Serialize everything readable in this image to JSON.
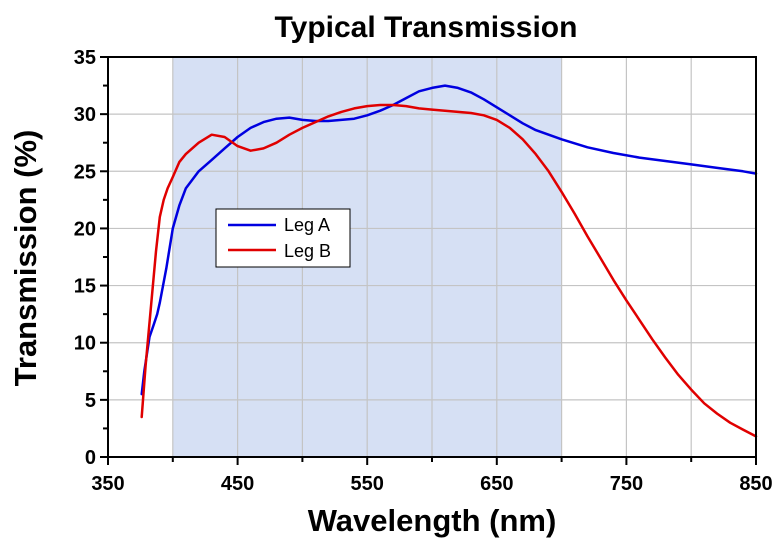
{
  "chart_data": {
    "type": "line",
    "title": "Typical Transmission",
    "xlabel": "Wavelength (nm)",
    "ylabel": "Transmission (%)",
    "xlim": [
      350,
      850
    ],
    "ylim": [
      0,
      35
    ],
    "xticks": [
      350,
      450,
      550,
      650,
      750,
      850
    ],
    "yticks": [
      0,
      5,
      10,
      15,
      20,
      25,
      30,
      35
    ],
    "xtick_labels": [
      "350",
      "450",
      "550",
      "650",
      "750",
      "850"
    ],
    "ytick_labels": [
      "0",
      "5",
      "10",
      "15",
      "20",
      "25",
      "30",
      "35"
    ],
    "grid": true,
    "shaded_region": {
      "x_start": 400,
      "x_end": 700,
      "color": "#d6e0f4"
    },
    "legend_position": "center-left",
    "series": [
      {
        "name": "Leg A",
        "color": "#0000e0",
        "x": [
          376,
          378,
          380,
          382,
          385,
          388,
          390,
          395,
          400,
          405,
          410,
          420,
          430,
          440,
          450,
          460,
          470,
          480,
          490,
          500,
          510,
          520,
          530,
          540,
          550,
          560,
          570,
          580,
          590,
          600,
          610,
          620,
          630,
          640,
          650,
          660,
          670,
          680,
          700,
          720,
          740,
          760,
          780,
          800,
          820,
          840,
          850
        ],
        "y": [
          5.5,
          7.5,
          9.0,
          10.5,
          11.5,
          12.5,
          13.5,
          16.5,
          20.0,
          22.0,
          23.5,
          25.0,
          26.0,
          27.0,
          28.0,
          28.8,
          29.3,
          29.6,
          29.7,
          29.5,
          29.4,
          29.4,
          29.5,
          29.6,
          29.9,
          30.3,
          30.8,
          31.4,
          32.0,
          32.3,
          32.5,
          32.3,
          31.9,
          31.3,
          30.6,
          29.9,
          29.2,
          28.6,
          27.8,
          27.1,
          26.6,
          26.2,
          25.9,
          25.6,
          25.3,
          25.0,
          24.8
        ]
      },
      {
        "name": "Leg B",
        "color": "#e00000",
        "x": [
          376,
          377,
          379,
          381,
          383,
          385,
          387,
          390,
          393,
          396,
          400,
          405,
          410,
          420,
          430,
          440,
          450,
          460,
          470,
          480,
          490,
          500,
          510,
          520,
          530,
          540,
          550,
          560,
          570,
          580,
          590,
          600,
          610,
          620,
          630,
          640,
          650,
          660,
          670,
          680,
          690,
          700,
          710,
          720,
          730,
          740,
          750,
          760,
          770,
          780,
          790,
          800,
          810,
          820,
          830,
          840,
          850
        ],
        "y": [
          3.5,
          5.0,
          8.0,
          10.5,
          13.0,
          15.5,
          18.0,
          21.0,
          22.5,
          23.5,
          24.5,
          25.8,
          26.5,
          27.5,
          28.2,
          28.0,
          27.2,
          26.8,
          27.0,
          27.5,
          28.2,
          28.8,
          29.3,
          29.8,
          30.2,
          30.5,
          30.7,
          30.8,
          30.8,
          30.7,
          30.5,
          30.4,
          30.3,
          30.2,
          30.1,
          29.9,
          29.5,
          28.8,
          27.8,
          26.5,
          25.0,
          23.2,
          21.3,
          19.3,
          17.4,
          15.5,
          13.7,
          12.0,
          10.3,
          8.7,
          7.2,
          5.9,
          4.7,
          3.8,
          3.0,
          2.4,
          1.8
        ]
      }
    ]
  }
}
